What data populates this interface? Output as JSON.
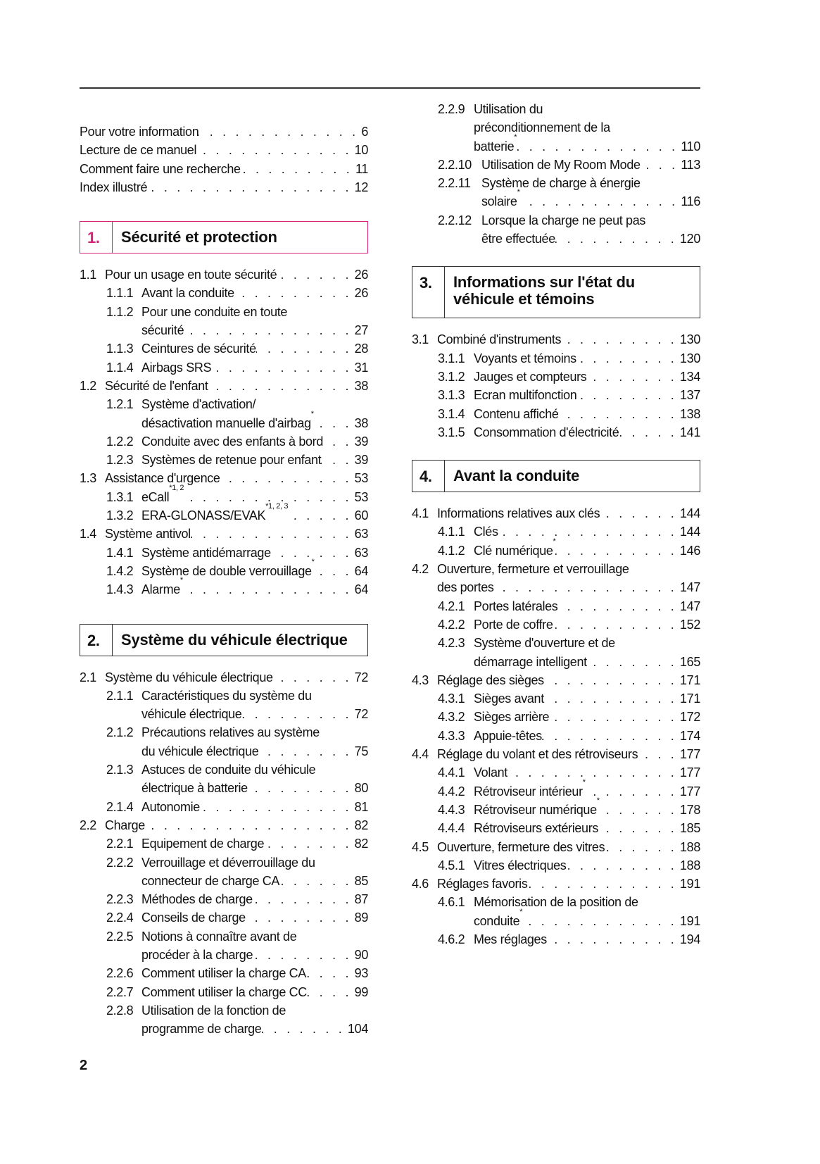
{
  "page_number": "2",
  "accent_color": "#d6237a",
  "left": [
    {
      "type": "entry",
      "level": 0,
      "num": "",
      "lines": [
        "Pour votre information"
      ],
      "page": "6"
    },
    {
      "type": "entry",
      "level": 0,
      "num": "",
      "lines": [
        "Lecture de ce manuel"
      ],
      "page": "10"
    },
    {
      "type": "entry",
      "level": 0,
      "num": "",
      "lines": [
        "Comment faire une recherche"
      ],
      "page": "11"
    },
    {
      "type": "entry",
      "level": 0,
      "num": "",
      "lines": [
        "Index illustré"
      ],
      "page": "12"
    },
    {
      "type": "section",
      "num": "1.",
      "title": [
        "Sécurité et protection"
      ],
      "accent": true
    },
    {
      "type": "entry",
      "level": 1,
      "num": "1.1",
      "lines": [
        "Pour un usage en toute sécurité"
      ],
      "page": "26"
    },
    {
      "type": "entry",
      "level": 2,
      "num": "1.1.1",
      "lines": [
        "Avant la conduite"
      ],
      "page": "26"
    },
    {
      "type": "entry",
      "level": 2,
      "num": "1.1.2",
      "lines": [
        "Pour une conduite en toute",
        "sécurité"
      ],
      "page": "27"
    },
    {
      "type": "entry",
      "level": 2,
      "num": "1.1.3",
      "lines": [
        "Ceintures de sécurité"
      ],
      "page": "28"
    },
    {
      "type": "entry",
      "level": 2,
      "num": "1.1.4",
      "lines": [
        "Airbags SRS"
      ],
      "page": "31"
    },
    {
      "type": "entry",
      "level": 1,
      "num": "1.2",
      "lines": [
        "Sécurité de l'enfant"
      ],
      "page": "38"
    },
    {
      "type": "entry",
      "level": 2,
      "num": "1.2.1",
      "lines": [
        "Système d'activation/",
        "désactivation manuelle d'airbag"
      ],
      "sup": "*",
      "page": "38"
    },
    {
      "type": "entry",
      "level": 2,
      "num": "1.2.2",
      "lines": [
        "Conduite avec des enfants à bord"
      ],
      "page": "39"
    },
    {
      "type": "entry",
      "level": 2,
      "num": "1.2.3",
      "lines": [
        "Systèmes de retenue pour enfant"
      ],
      "page": "39"
    },
    {
      "type": "entry",
      "level": 1,
      "num": "1.3",
      "lines": [
        "Assistance d'urgence"
      ],
      "page": "53"
    },
    {
      "type": "entry",
      "level": 2,
      "num": "1.3.1",
      "lines": [
        "eCall"
      ],
      "sup": "*1, 2",
      "page": "53"
    },
    {
      "type": "entry",
      "level": 2,
      "num": "1.3.2",
      "lines": [
        "ERA-GLONASS/EVAK"
      ],
      "sup": "*1, 2, 3",
      "page": "60"
    },
    {
      "type": "entry",
      "level": 1,
      "num": "1.4",
      "lines": [
        "Système antivol"
      ],
      "page": "63"
    },
    {
      "type": "entry",
      "level": 2,
      "num": "1.4.1",
      "lines": [
        "Système antidémarrage"
      ],
      "page": "63"
    },
    {
      "type": "entry",
      "level": 2,
      "num": "1.4.2",
      "lines": [
        "Système de double verrouillage"
      ],
      "sup": "*",
      "page": "64"
    },
    {
      "type": "entry",
      "level": 2,
      "num": "1.4.3",
      "lines": [
        "Alarme"
      ],
      "sup": "*",
      "page": "64"
    },
    {
      "type": "section",
      "num": "2.",
      "title": [
        "Système du véhicule électrique"
      ],
      "accent": false
    },
    {
      "type": "entry",
      "level": 1,
      "num": "2.1",
      "lines": [
        "Système du véhicule électrique"
      ],
      "page": "72"
    },
    {
      "type": "entry",
      "level": 2,
      "num": "2.1.1",
      "lines": [
        "Caractéristiques du système du",
        "véhicule électrique"
      ],
      "page": "72"
    },
    {
      "type": "entry",
      "level": 2,
      "num": "2.1.2",
      "lines": [
        "Précautions relatives au système",
        "du véhicule électrique"
      ],
      "page": "75"
    },
    {
      "type": "entry",
      "level": 2,
      "num": "2.1.3",
      "lines": [
        "Astuces de conduite du véhicule",
        "électrique à batterie"
      ],
      "page": "80"
    },
    {
      "type": "entry",
      "level": 2,
      "num": "2.1.4",
      "lines": [
        "Autonomie"
      ],
      "page": "81"
    },
    {
      "type": "entry",
      "level": 1,
      "num": "2.2",
      "lines": [
        "Charge"
      ],
      "page": "82"
    },
    {
      "type": "entry",
      "level": 2,
      "num": "2.2.1",
      "lines": [
        "Equipement de charge"
      ],
      "page": "82"
    },
    {
      "type": "entry",
      "level": 2,
      "num": "2.2.2",
      "lines": [
        "Verrouillage et déverrouillage du",
        "connecteur de charge CA"
      ],
      "page": "85"
    },
    {
      "type": "entry",
      "level": 2,
      "num": "2.2.3",
      "lines": [
        "Méthodes de charge"
      ],
      "page": "87"
    },
    {
      "type": "entry",
      "level": 2,
      "num": "2.2.4",
      "lines": [
        "Conseils de charge"
      ],
      "page": "89"
    },
    {
      "type": "entry",
      "level": 2,
      "num": "2.2.5",
      "lines": [
        "Notions à connaître avant de",
        "procéder à la charge"
      ],
      "page": "90"
    },
    {
      "type": "entry",
      "level": 2,
      "num": "2.2.6",
      "lines": [
        "Comment utiliser la charge CA"
      ],
      "page": "93"
    },
    {
      "type": "entry",
      "level": 2,
      "num": "2.2.7",
      "lines": [
        "Comment utiliser la charge CC"
      ],
      "page": "99"
    },
    {
      "type": "entry",
      "level": 2,
      "num": "2.2.8",
      "lines": [
        "Utilisation de la fonction de",
        "programme de charge"
      ],
      "page": "104"
    }
  ],
  "right": [
    {
      "type": "entry",
      "level": 2,
      "num": "2.2.9",
      "lines": [
        "Utilisation du",
        "préconditionnement de la",
        "batterie"
      ],
      "sup": "*",
      "page": "110"
    },
    {
      "type": "entry",
      "level": 2,
      "num": "2.2.10",
      "lines": [
        "Utilisation de My Room Mode"
      ],
      "page": "113"
    },
    {
      "type": "entry",
      "level": 2,
      "num": "2.2.11",
      "lines": [
        "Système de charge à énergie",
        "solaire"
      ],
      "sup": "*",
      "page": "116"
    },
    {
      "type": "entry",
      "level": 2,
      "num": "2.2.12",
      "lines": [
        "Lorsque la charge ne peut pas",
        "être effectuée"
      ],
      "page": "120"
    },
    {
      "type": "section",
      "num": "3.",
      "title": [
        "Informations sur l'état du",
        "véhicule et témoins"
      ],
      "accent": false
    },
    {
      "type": "entry",
      "level": 1,
      "num": "3.1",
      "lines": [
        "Combiné d'instruments"
      ],
      "page": "130"
    },
    {
      "type": "entry",
      "level": 2,
      "num": "3.1.1",
      "lines": [
        "Voyants et témoins"
      ],
      "page": "130"
    },
    {
      "type": "entry",
      "level": 2,
      "num": "3.1.2",
      "lines": [
        "Jauges et compteurs"
      ],
      "page": "134"
    },
    {
      "type": "entry",
      "level": 2,
      "num": "3.1.3",
      "lines": [
        "Ecran multifonction"
      ],
      "page": "137"
    },
    {
      "type": "entry",
      "level": 2,
      "num": "3.1.4",
      "lines": [
        "Contenu affiché"
      ],
      "page": "138"
    },
    {
      "type": "entry",
      "level": 2,
      "num": "3.1.5",
      "lines": [
        "Consommation d'électricité"
      ],
      "page": "141"
    },
    {
      "type": "section",
      "num": "4.",
      "title": [
        "Avant la conduite"
      ],
      "accent": false
    },
    {
      "type": "entry",
      "level": 1,
      "num": "4.1",
      "lines": [
        "Informations relatives aux clés"
      ],
      "page": "144"
    },
    {
      "type": "entry",
      "level": 2,
      "num": "4.1.1",
      "lines": [
        "Clés"
      ],
      "page": "144"
    },
    {
      "type": "entry",
      "level": 2,
      "num": "4.1.2",
      "lines": [
        "Clé numérique"
      ],
      "sup": "*",
      "page": "146"
    },
    {
      "type": "entry",
      "level": 1,
      "num": "4.2",
      "lines": [
        "Ouverture, fermeture et verrouillage",
        "des portes"
      ],
      "page": "147"
    },
    {
      "type": "entry",
      "level": 2,
      "num": "4.2.1",
      "lines": [
        "Portes latérales"
      ],
      "page": "147"
    },
    {
      "type": "entry",
      "level": 2,
      "num": "4.2.2",
      "lines": [
        "Porte de coffre"
      ],
      "page": "152"
    },
    {
      "type": "entry",
      "level": 2,
      "num": "4.2.3",
      "lines": [
        "Système d'ouverture et de",
        "démarrage intelligent"
      ],
      "page": "165"
    },
    {
      "type": "entry",
      "level": 1,
      "num": "4.3",
      "lines": [
        "Réglage des sièges"
      ],
      "page": "171"
    },
    {
      "type": "entry",
      "level": 2,
      "num": "4.3.1",
      "lines": [
        "Sièges avant"
      ],
      "page": "171"
    },
    {
      "type": "entry",
      "level": 2,
      "num": "4.3.2",
      "lines": [
        "Sièges arrière"
      ],
      "page": "172"
    },
    {
      "type": "entry",
      "level": 2,
      "num": "4.3.3",
      "lines": [
        "Appuie-têtes"
      ],
      "page": "174"
    },
    {
      "type": "entry",
      "level": 1,
      "num": "4.4",
      "lines": [
        "Réglage du volant et des rétroviseurs"
      ],
      "page": "177"
    },
    {
      "type": "entry",
      "level": 2,
      "num": "4.4.1",
      "lines": [
        "Volant"
      ],
      "page": "177"
    },
    {
      "type": "entry",
      "level": 2,
      "num": "4.4.2",
      "lines": [
        "Rétroviseur intérieur"
      ],
      "sup": "*",
      "page": "177"
    },
    {
      "type": "entry",
      "level": 2,
      "num": "4.4.3",
      "lines": [
        "Rétroviseur numérique"
      ],
      "sup": "*",
      "page": "178"
    },
    {
      "type": "entry",
      "level": 2,
      "num": "4.4.4",
      "lines": [
        "Rétroviseurs extérieurs"
      ],
      "page": "185"
    },
    {
      "type": "entry",
      "level": 1,
      "num": "4.5",
      "lines": [
        "Ouverture, fermeture des vitres"
      ],
      "page": "188"
    },
    {
      "type": "entry",
      "level": 2,
      "num": "4.5.1",
      "lines": [
        "Vitres électriques"
      ],
      "page": "188"
    },
    {
      "type": "entry",
      "level": 1,
      "num": "4.6",
      "lines": [
        "Réglages favoris"
      ],
      "page": "191"
    },
    {
      "type": "entry",
      "level": 2,
      "num": "4.6.1",
      "lines": [
        "Mémorisation de la position de",
        "conduite"
      ],
      "sup": "*",
      "page": "191"
    },
    {
      "type": "entry",
      "level": 2,
      "num": "4.6.2",
      "lines": [
        "Mes réglages"
      ],
      "page": "194"
    }
  ]
}
